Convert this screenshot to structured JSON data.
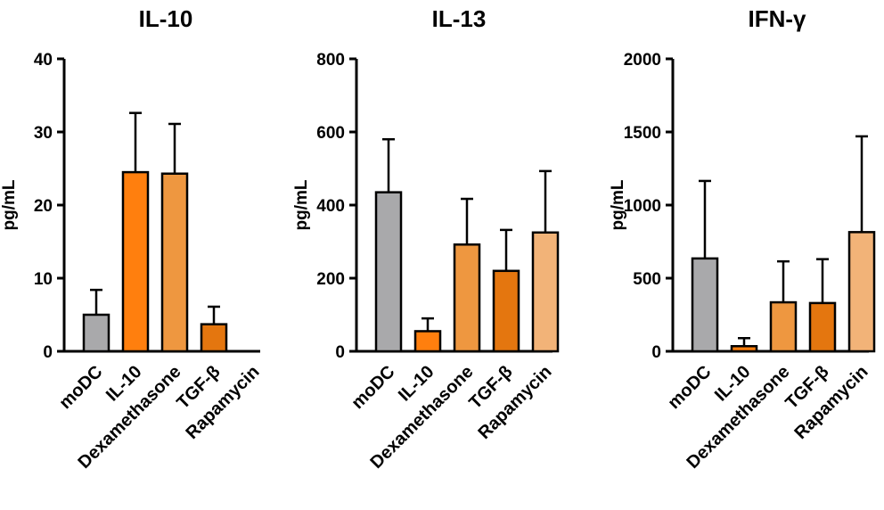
{
  "chart_data": [
    {
      "type": "bar",
      "title": "IL-10",
      "ylabel": "pg/mL",
      "ylim": [
        0,
        40
      ],
      "yticks": [
        0,
        10,
        20,
        30,
        40
      ],
      "categories": [
        "moDC",
        "IL-10",
        "Dexamethasone",
        "TGF-β",
        "Rapamycin"
      ],
      "values": [
        5,
        24.5,
        24.3,
        3.7,
        null
      ],
      "errors": [
        3.4,
        8.1,
        6.8,
        2.4,
        null
      ],
      "colors": [
        "#a9a9ab",
        "#ff7f0e",
        "#ee9740",
        "#e4760f",
        "#f2b378"
      ]
    },
    {
      "type": "bar",
      "title": "IL-13",
      "ylabel": "pg/mL",
      "ylim": [
        0,
        800
      ],
      "yticks": [
        0,
        200,
        400,
        600,
        800
      ],
      "categories": [
        "moDC",
        "IL-10",
        "Dexamethasone",
        "TGF-β",
        "Rapamycin"
      ],
      "values": [
        435,
        55,
        292,
        220,
        325
      ],
      "errors": [
        145,
        35,
        125,
        112,
        168
      ],
      "colors": [
        "#a9a9ab",
        "#ff7f0e",
        "#ee9740",
        "#e4760f",
        "#f2b378"
      ]
    },
    {
      "type": "bar",
      "title": "IFN-γ",
      "ylabel": "pg/mL",
      "ylim": [
        0,
        2000
      ],
      "yticks": [
        0,
        500,
        1000,
        1500,
        2000
      ],
      "categories": [
        "moDC",
        "IL-10",
        "Dexamethasone",
        "TGF-β",
        "Rapamycin"
      ],
      "values": [
        635,
        35,
        335,
        330,
        815
      ],
      "errors": [
        530,
        55,
        280,
        300,
        655
      ],
      "colors": [
        "#a9a9ab",
        "#ff7f0e",
        "#ee9740",
        "#e4760f",
        "#f2b378"
      ]
    }
  ]
}
